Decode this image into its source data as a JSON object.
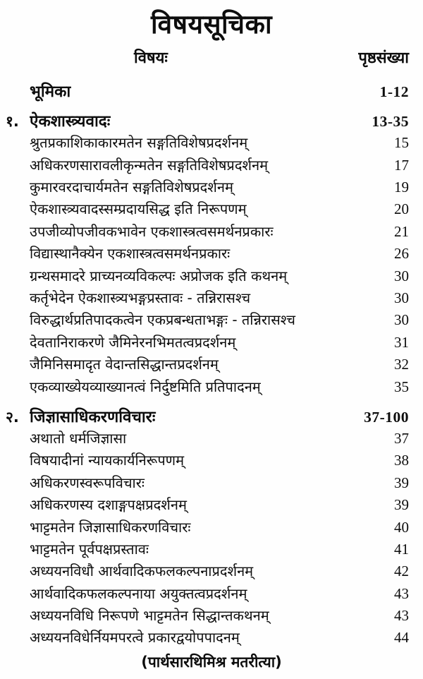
{
  "page": {
    "title": "विषयसूचिका",
    "subject_label": "विषयः",
    "page_label": "पृष्ठसंख्या",
    "footer_note": "(पार्थसारथिमिश्र मतरीत्या)",
    "text_color": "#0d0d0d",
    "background_color": "#fefefe"
  },
  "toc_rows": [
    {
      "num": "",
      "title": "भूमिका",
      "pages": "1-12",
      "bold": true
    },
    {
      "num": "१.",
      "title": "ऐकशास्त्र्यवादः",
      "pages": "13-35",
      "bold": true
    },
    {
      "num": "",
      "title": "श्रुतप्रकाशिकाकारमतेन सङ्गतिविशेषप्रदर्शनम्",
      "pages": "15",
      "bold": false
    },
    {
      "num": "",
      "title": "अधिकरणसारावलीकृन्मतेन सङ्गतिविशेषप्रदर्शनम्",
      "pages": "17",
      "bold": false
    },
    {
      "num": "",
      "title": "कुमारवरदाचार्यमतेन सङ्गतिविशेषप्रदर्शनम्",
      "pages": "19",
      "bold": false
    },
    {
      "num": "",
      "title": "ऐकशास्त्र्यवादस्सम्प्रदायसिद्ध इति निरूपणम्",
      "pages": "20",
      "bold": false
    },
    {
      "num": "",
      "title": "उपजीव्योपजीवकभावेन एकशास्त्रत्वसमर्थनप्रकारः",
      "pages": "21",
      "bold": false
    },
    {
      "num": "",
      "title": "विद्यास्थानैक्येन एकशास्त्रत्वसमर्थनप्रकारः",
      "pages": "26",
      "bold": false
    },
    {
      "num": "",
      "title": "ग्रन्थसमादरे प्राच्यनव्यविकल्पः अप्रोजक इति कथनम्",
      "pages": "30",
      "bold": false
    },
    {
      "num": "",
      "title": "कर्तृभेदेन ऐकशास्त्र्यभङ्गप्रस्तावः - तन्निरासश्च",
      "pages": "30",
      "bold": false
    },
    {
      "num": "",
      "title": "विरुद्धार्थप्रतिपादकत्वेन एकप्रबन्धताभङ्गः - तन्निरासश्च",
      "pages": "30",
      "bold": false
    },
    {
      "num": "",
      "title": "देवतानिराकरणे जैमिनेरनभिमतत्वप्रदर्शनम्",
      "pages": "31",
      "bold": false
    },
    {
      "num": "",
      "title": "जैमिनिसमादृत वेदान्तसिद्धान्तप्रदर्शनम्",
      "pages": "32",
      "bold": false
    },
    {
      "num": "",
      "title": "एकव्याख्येयव्याख्यानत्वं निर्दुष्टमिति प्रतिपादनम्",
      "pages": "35",
      "bold": false
    },
    {
      "num": "२.",
      "title": "जिज्ञासाधिकरणविचारः",
      "pages": "37-100",
      "bold": true
    },
    {
      "num": "",
      "title": "अथातो धर्मजिज्ञासा",
      "pages": "37",
      "bold": false
    },
    {
      "num": "",
      "title": "विषयादीनां न्यायकार्यनिरूपणम्",
      "pages": "38",
      "bold": false
    },
    {
      "num": "",
      "title": "अधिकरणस्वरूपविचारः",
      "pages": "39",
      "bold": false
    },
    {
      "num": "",
      "title": "अधिकरणस्य दशाङ्गपक्षप्रदर्शनम्",
      "pages": "39",
      "bold": false
    },
    {
      "num": "",
      "title": "भाट्टमतेन जिज्ञासाधिकरणविचारः",
      "pages": "40",
      "bold": false
    },
    {
      "num": "",
      "title": "भाट्टमतेन पूर्वपक्षप्रस्तावः",
      "pages": "41",
      "bold": false
    },
    {
      "num": "",
      "title": "अध्ययनविधौ आर्थवादिकफलकल्पनाप्रदर्शनम्",
      "pages": "42",
      "bold": false
    },
    {
      "num": "",
      "title": "आर्थवादिकफलकल्पनाया अयुक्तत्वप्रदर्शनम्",
      "pages": "43",
      "bold": false
    },
    {
      "num": "",
      "title": "अध्ययनविधि निरूपणे भाट्टमतेन सिद्धान्तकथनम्",
      "pages": "43",
      "bold": false
    },
    {
      "num": "",
      "title": "अध्ययनविधेर्नियमपरत्वे प्रकारद्वयोपपादनम्",
      "pages": "44",
      "bold": false
    }
  ]
}
